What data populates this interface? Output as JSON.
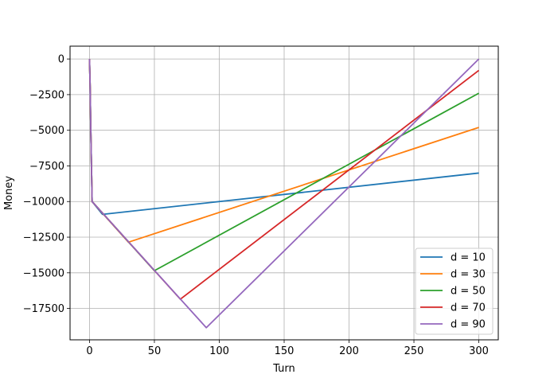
{
  "chart_data": {
    "type": "line",
    "title": "",
    "xlabel": "Turn",
    "ylabel": "Money",
    "xlim": [
      -15,
      315
    ],
    "ylim": [
      -19700,
      900
    ],
    "xticks": [
      0,
      50,
      100,
      150,
      200,
      250,
      300
    ],
    "yticks": [
      0,
      -2500,
      -5000,
      -7500,
      -10000,
      -12500,
      -15000,
      -17500
    ],
    "grid": true,
    "legend_position": "lower right",
    "series": [
      {
        "name": "d = 10",
        "color": "#1f77b4",
        "x": [
          0,
          0.5,
          1,
          1.5,
          2,
          10,
          300
        ],
        "y": [
          0,
          -2000,
          -5000,
          -7500,
          -10000,
          -10900,
          -8000
        ]
      },
      {
        "name": "d = 30",
        "color": "#ff7f0e",
        "x": [
          0,
          0.5,
          1,
          1.5,
          2,
          30,
          300
        ],
        "y": [
          0,
          -2000,
          -5000,
          -7500,
          -10000,
          -12850,
          -4800
        ]
      },
      {
        "name": "d = 50",
        "color": "#2ca02c",
        "x": [
          0,
          0.5,
          1,
          1.5,
          2,
          50,
          300
        ],
        "y": [
          0,
          -2000,
          -5000,
          -7500,
          -10000,
          -14850,
          -2400
        ]
      },
      {
        "name": "d = 70",
        "color": "#d62728",
        "x": [
          0,
          0.5,
          1,
          1.5,
          2,
          70,
          300
        ],
        "y": [
          0,
          -2000,
          -5000,
          -7500,
          -10000,
          -16850,
          -800
        ]
      },
      {
        "name": "d = 90",
        "color": "#9467bd",
        "x": [
          0,
          0.5,
          1,
          1.5,
          2,
          90,
          300
        ],
        "y": [
          0,
          -2000,
          -5000,
          -7500,
          -10000,
          -18850,
          0
        ]
      }
    ]
  }
}
